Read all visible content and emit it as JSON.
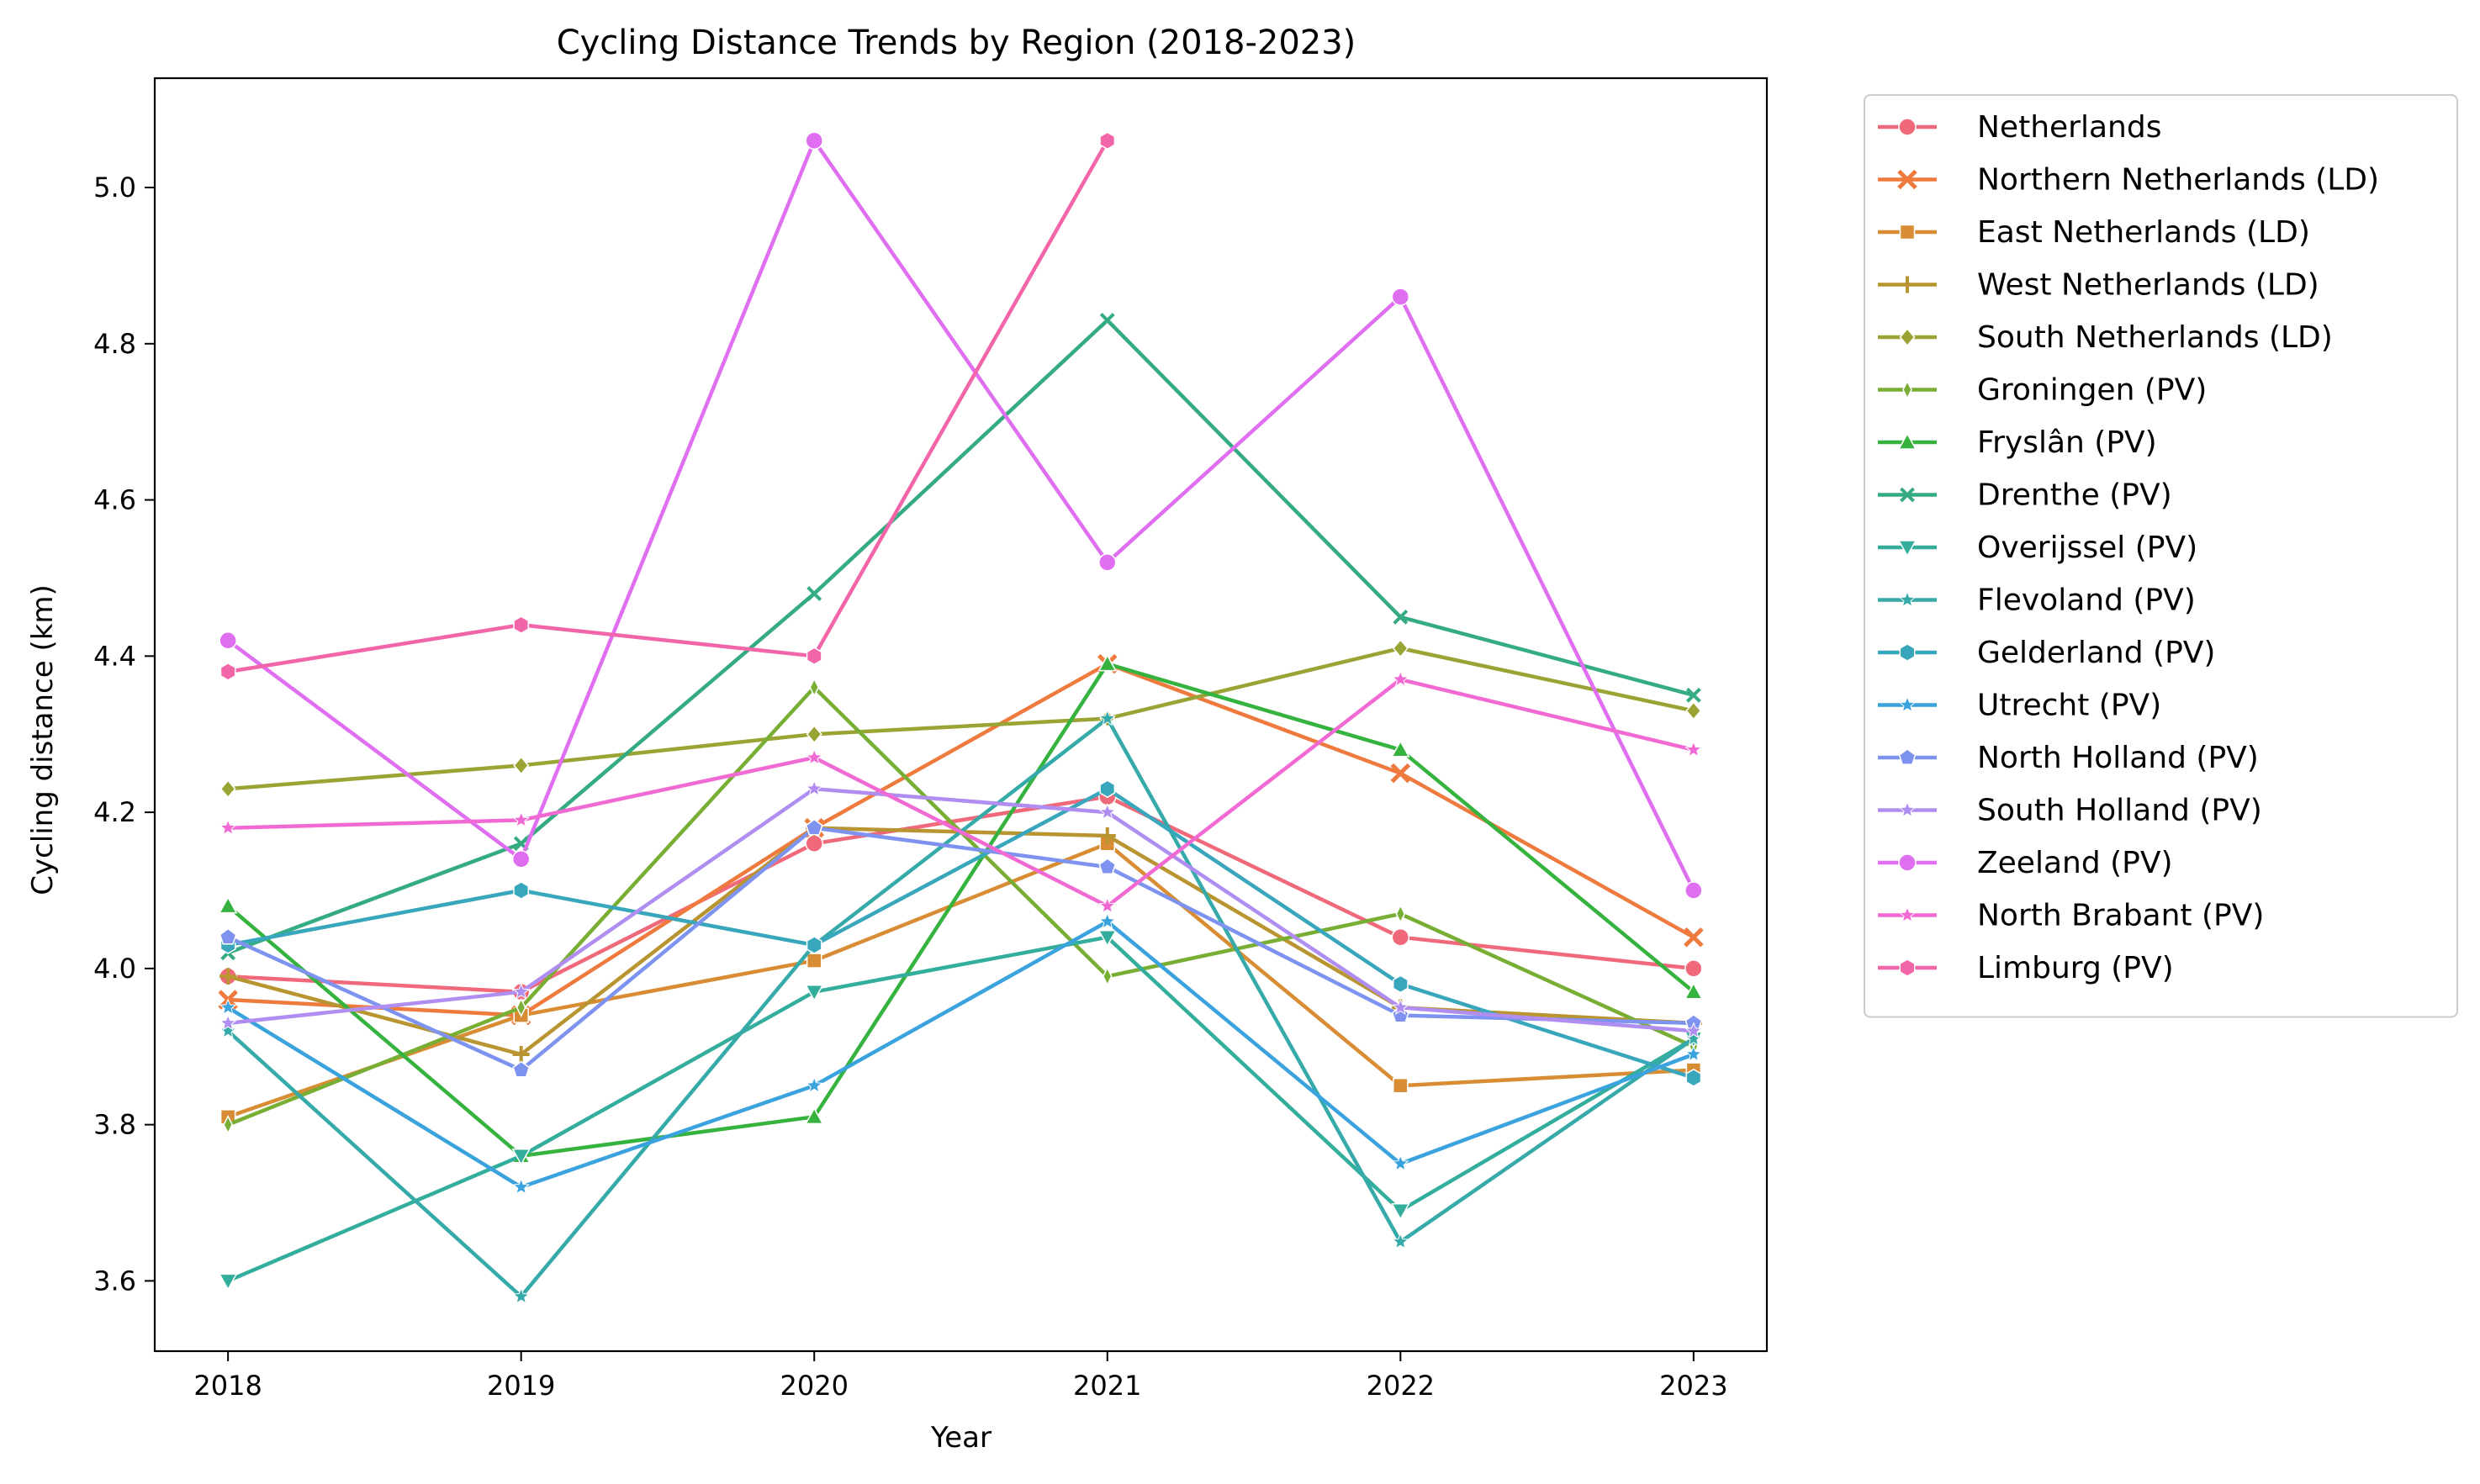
{
  "chart_data": {
    "type": "line",
    "title": "Cycling Distance Trends by Region (2018-2023)",
    "xlabel": "Year",
    "ylabel": "Cycling distance (km)",
    "x": [
      2018,
      2019,
      2020,
      2021,
      2022,
      2023
    ],
    "x_tick_labels": [
      "2018",
      "2019",
      "2020",
      "2021",
      "2022",
      "2023"
    ],
    "y_ticks": [
      3.6,
      3.8,
      4.0,
      4.2,
      4.4,
      4.6,
      4.8,
      5.0
    ],
    "y_tick_labels": [
      "3.6",
      "3.8",
      "4.0",
      "4.2",
      "4.4",
      "4.6",
      "4.8",
      "5.0"
    ],
    "xlim": [
      2017.75,
      2023.25
    ],
    "ylim": [
      3.51,
      5.14
    ],
    "grid": false,
    "legend_position": "outside-right",
    "series": [
      {
        "name": "Netherlands",
        "color": "#f0697a",
        "marker": "circle",
        "values": [
          3.99,
          3.97,
          4.16,
          4.22,
          4.04,
          4.0
        ]
      },
      {
        "name": "Northern Netherlands (LD)",
        "color": "#ef7a3e",
        "marker": "x",
        "values": [
          3.96,
          3.94,
          4.18,
          4.39,
          4.25,
          4.04
        ]
      },
      {
        "name": "East Netherlands (LD)",
        "color": "#d88d34",
        "marker": "square",
        "values": [
          3.81,
          3.94,
          4.01,
          4.16,
          3.85,
          3.87
        ]
      },
      {
        "name": "West Netherlands (LD)",
        "color": "#b89530",
        "marker": "plus",
        "values": [
          3.99,
          3.89,
          4.18,
          4.17,
          3.95,
          3.93
        ]
      },
      {
        "name": "South Netherlands (LD)",
        "color": "#9aa434",
        "marker": "diamond",
        "values": [
          4.23,
          4.26,
          4.3,
          4.32,
          4.41,
          4.33
        ]
      },
      {
        "name": "Groningen (PV)",
        "color": "#78ae34",
        "marker": "thin-diamond",
        "values": [
          3.8,
          3.95,
          4.36,
          3.99,
          4.07,
          3.9
        ]
      },
      {
        "name": "Fryslân (PV)",
        "color": "#36b33f",
        "marker": "triangle-up",
        "values": [
          4.08,
          3.76,
          3.81,
          4.39,
          4.28,
          3.97
        ]
      },
      {
        "name": "Drenthe (PV)",
        "color": "#35ab82",
        "marker": "x-small",
        "values": [
          4.02,
          4.16,
          4.48,
          4.83,
          4.45,
          4.35
        ]
      },
      {
        "name": "Overijssel (PV)",
        "color": "#33ae9c",
        "marker": "triangle-down",
        "values": [
          3.6,
          3.76,
          3.97,
          4.04,
          3.69,
          3.91
        ]
      },
      {
        "name": "Flevoland (PV)",
        "color": "#35aaa9",
        "marker": "star",
        "values": [
          3.92,
          3.58,
          4.03,
          4.32,
          3.65,
          3.91
        ]
      },
      {
        "name": "Gelderland (PV)",
        "color": "#38a6bb",
        "marker": "hexagon",
        "values": [
          4.03,
          4.1,
          4.03,
          4.23,
          3.98,
          3.86
        ]
      },
      {
        "name": "Utrecht (PV)",
        "color": "#3aa3de",
        "marker": "star",
        "values": [
          3.95,
          3.72,
          3.85,
          4.06,
          3.75,
          3.89
        ]
      },
      {
        "name": "North Holland (PV)",
        "color": "#7e93f0",
        "marker": "pentagon",
        "values": [
          4.04,
          3.87,
          4.18,
          4.13,
          3.94,
          3.93
        ]
      },
      {
        "name": "South Holland (PV)",
        "color": "#b08ef1",
        "marker": "star",
        "values": [
          3.93,
          3.97,
          4.23,
          4.2,
          3.95,
          3.92
        ]
      },
      {
        "name": "Zeeland (PV)",
        "color": "#e06ef0",
        "marker": "circle",
        "values": [
          4.42,
          4.14,
          5.06,
          4.52,
          4.86,
          4.1
        ]
      },
      {
        "name": "North Brabant (PV)",
        "color": "#f16ad4",
        "marker": "star",
        "values": [
          4.18,
          4.19,
          4.27,
          4.08,
          4.37,
          4.28
        ]
      },
      {
        "name": "Limburg (PV)",
        "color": "#f265a8",
        "marker": "hexagon",
        "values": [
          4.38,
          4.44,
          4.4,
          5.06,
          null,
          null
        ]
      }
    ]
  }
}
